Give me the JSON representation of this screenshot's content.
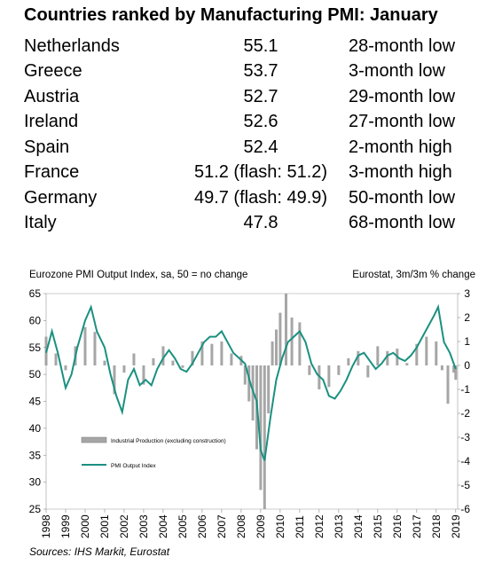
{
  "table": {
    "title": "Countries ranked by Manufacturing PMI: January",
    "rows": [
      {
        "country": "Netherlands",
        "value": "55.1",
        "note": "28-month low"
      },
      {
        "country": "Greece",
        "value": "53.7",
        "note": "3-month low"
      },
      {
        "country": "Austria",
        "value": "52.7",
        "note": "29-month low"
      },
      {
        "country": "Ireland",
        "value": "52.6",
        "note": "27-month low"
      },
      {
        "country": "Spain",
        "value": "52.4",
        "note": "2-month high"
      },
      {
        "country": "France",
        "value": "51.2 (flash: 51.2)",
        "note": "3-month high"
      },
      {
        "country": "Germany",
        "value": "49.7 (flash: 49.9)",
        "note": "50-month low"
      },
      {
        "country": "Italy",
        "value": "47.8",
        "note": "68-month low"
      }
    ]
  },
  "source": "Sources: IHS Markit, Eurostat",
  "chart_data": {
    "type": "line",
    "left_axis_title": "Eurozone PMI Output Index, sa, 50 = no change",
    "right_axis_title": "Eurostat, 3m/3m % change",
    "ylim_left": [
      25,
      65
    ],
    "yticks_left": [
      25,
      30,
      35,
      40,
      45,
      50,
      55,
      60,
      65
    ],
    "ylim_right": [
      -6,
      3
    ],
    "yticks_right": [
      -6,
      -5,
      -4,
      -3,
      -2,
      -1,
      0,
      1,
      2,
      3
    ],
    "xlim": [
      1998,
      2019.1
    ],
    "xticks": [
      "1998",
      "1999",
      "2000",
      "2001",
      "2002",
      "2003",
      "2004",
      "2005",
      "2006",
      "2007",
      "2008",
      "2009",
      "2010",
      "2011",
      "2012",
      "2013",
      "2014",
      "2015",
      "2016",
      "2017",
      "2018",
      "2019"
    ],
    "colors": {
      "bars": "#a6a6a6",
      "line": "#1a9080"
    },
    "series": [
      {
        "name": "Industrial Production (excluding construction)",
        "kind": "bar",
        "axis": "right",
        "x": [
          1998.0,
          1998.5,
          1999.0,
          1999.5,
          2000.0,
          2000.5,
          2001.0,
          2001.5,
          2002.0,
          2002.5,
          2003.0,
          2003.5,
          2004.0,
          2004.5,
          2005.0,
          2005.5,
          2006.0,
          2006.5,
          2007.0,
          2007.5,
          2008.0,
          2008.2,
          2008.4,
          2008.6,
          2008.8,
          2009.0,
          2009.2,
          2009.4,
          2009.6,
          2009.8,
          2010.0,
          2010.3,
          2010.6,
          2011.0,
          2011.5,
          2012.0,
          2012.5,
          2013.0,
          2013.5,
          2014.0,
          2014.5,
          2015.0,
          2015.5,
          2016.0,
          2016.5,
          2017.0,
          2017.5,
          2018.0,
          2018.3,
          2018.6,
          2018.9,
          2019.0
        ],
        "y": [
          1.2,
          0.5,
          -0.2,
          0.8,
          1.6,
          1.4,
          0.2,
          -1.2,
          -0.3,
          0.5,
          -0.8,
          0.3,
          0.8,
          0.2,
          -0.1,
          0.6,
          1.0,
          0.9,
          1.0,
          0.5,
          0.4,
          -0.8,
          -1.5,
          -2.3,
          -3.5,
          -5.2,
          -6.0,
          -2.0,
          1.0,
          1.5,
          2.2,
          3.0,
          2.0,
          1.8,
          -0.4,
          -1.0,
          -0.9,
          -0.4,
          0.3,
          0.6,
          -0.5,
          0.8,
          0.6,
          0.7,
          0.1,
          0.9,
          1.2,
          1.0,
          -0.2,
          -1.6,
          -0.3,
          -0.6
        ]
      },
      {
        "name": "PMI Output Index",
        "kind": "line",
        "axis": "left",
        "x": [
          1998.0,
          1998.3,
          1998.6,
          1999.0,
          1999.3,
          1999.6,
          2000.0,
          2000.3,
          2000.6,
          2001.0,
          2001.3,
          2001.6,
          2001.9,
          2002.2,
          2002.5,
          2002.8,
          2003.1,
          2003.4,
          2003.7,
          2004.0,
          2004.3,
          2004.6,
          2004.9,
          2005.2,
          2005.5,
          2005.8,
          2006.1,
          2006.4,
          2006.7,
          2007.0,
          2007.3,
          2007.6,
          2007.9,
          2008.2,
          2008.5,
          2008.8,
          2009.0,
          2009.2,
          2009.5,
          2009.8,
          2010.1,
          2010.4,
          2010.7,
          2011.0,
          2011.3,
          2011.6,
          2011.9,
          2012.2,
          2012.5,
          2012.8,
          2013.1,
          2013.4,
          2013.7,
          2014.0,
          2014.3,
          2014.6,
          2014.9,
          2015.2,
          2015.5,
          2015.8,
          2016.1,
          2016.4,
          2016.7,
          2017.0,
          2017.3,
          2017.6,
          2017.9,
          2018.1,
          2018.4,
          2018.7,
          2019.0
        ],
        "y": [
          54,
          58,
          54,
          47.5,
          50,
          55,
          60,
          62.5,
          58,
          55,
          50,
          46,
          43,
          49,
          51,
          48,
          49,
          48,
          51,
          53,
          54.5,
          53,
          51,
          50.5,
          52,
          54,
          56,
          57,
          57,
          58,
          56,
          54,
          53,
          52,
          48,
          45,
          36,
          34,
          42,
          49,
          53,
          56,
          57,
          58,
          56,
          52,
          50,
          49,
          46,
          45.5,
          47,
          49,
          51.5,
          53.5,
          54,
          52.5,
          51,
          52,
          53.5,
          54,
          53,
          52.5,
          53.5,
          55,
          57,
          59,
          61,
          62.5,
          56,
          54,
          51
        ]
      }
    ],
    "legend": {
      "position": "inside, lower-left"
    }
  }
}
